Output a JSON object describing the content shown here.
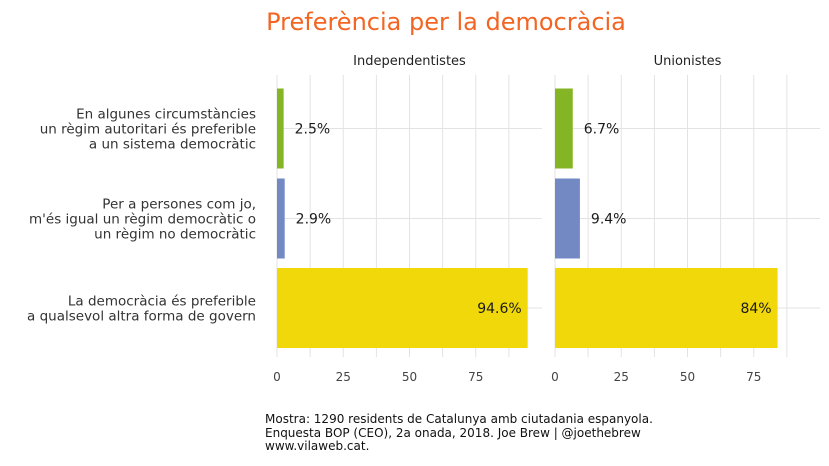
{
  "chart_data": {
    "type": "bar",
    "orientation": "horizontal",
    "title": "Preferència per la democràcia",
    "facets": [
      "Independentistes",
      "Unionistes"
    ],
    "categories": [
      [
        "En algunes circumstàncies",
        "un règim autoritari és preferible",
        "a un sistema democràtic"
      ],
      [
        "Per a persones com jo,",
        "m'és igual un règim democràtic o",
        "un règim no democràtic"
      ],
      [
        "La democràcia és preferible",
        "a qualsevol altra forma de govern"
      ]
    ],
    "colors": [
      "#84b524",
      "#7289c3",
      "#f0d80a"
    ],
    "series": [
      {
        "values": [
          2.5,
          2.9,
          94.6
        ],
        "labels": [
          "2.5%",
          "2.9%",
          "94.6%"
        ]
      },
      {
        "values": [
          6.7,
          9.4,
          84
        ],
        "labels": [
          "6.7%",
          "9.4%",
          "84%"
        ]
      }
    ],
    "xticks": [
      0,
      25,
      50,
      75
    ],
    "xlim": [
      0,
      100
    ],
    "grid": true,
    "xlabel": "",
    "ylabel": ""
  },
  "caption": [
    "Mostra: 1290 residents de Catalunya amb ciutadania espanyola.",
    "Enquesta BOP (CEO), 2a onada, 2018. Joe Brew | @joethebrew",
    "www.vilaweb.cat."
  ]
}
